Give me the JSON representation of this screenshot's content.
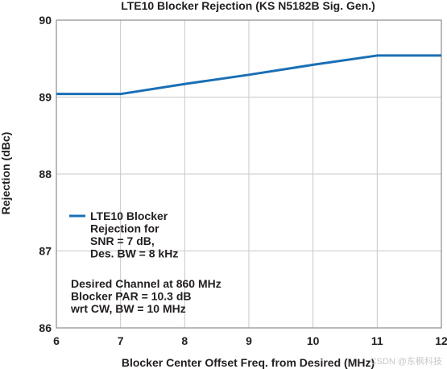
{
  "chart_data": {
    "type": "line",
    "title": "LTE10 Blocker Rejection (KS N5182B Sig. Gen.)",
    "xlabel": "Blocker Center Offset Freq. from Desired (MHz)",
    "ylabel": "Rejection (dBc)",
    "xlim": [
      6,
      12
    ],
    "ylim": [
      86,
      90
    ],
    "xticks": [
      6,
      7,
      8,
      9,
      10,
      11,
      12
    ],
    "yticks": [
      86,
      87,
      88,
      89,
      90
    ],
    "grid": true,
    "legend_position": "lower-left",
    "series": [
      {
        "name": "LTE10 Blocker Rejection for SNR = 7 dB, Des. BW = 8 kHz",
        "legend_lines": [
          "LTE10 Blocker",
          "Rejection for",
          "SNR = 7 dB,",
          "Des. BW = 8 kHz"
        ],
        "color": "#1a6fb5",
        "x": [
          6,
          7,
          8,
          9,
          10,
          11,
          12
        ],
        "y": [
          89.04,
          89.04,
          89.17,
          89.29,
          89.42,
          89.54,
          89.54
        ]
      }
    ],
    "annotation": [
      "Desired Channel at 860 MHz",
      "Blocker PAR = 10.3 dB",
      "wrt CW, BW = 10 MHz"
    ]
  },
  "watermark": "CSDN @东枫科技",
  "colors": {
    "line": "#1a6fb5",
    "grid": "#c8c8c8",
    "frame": "#8c8c8c",
    "text": "#231f20"
  }
}
